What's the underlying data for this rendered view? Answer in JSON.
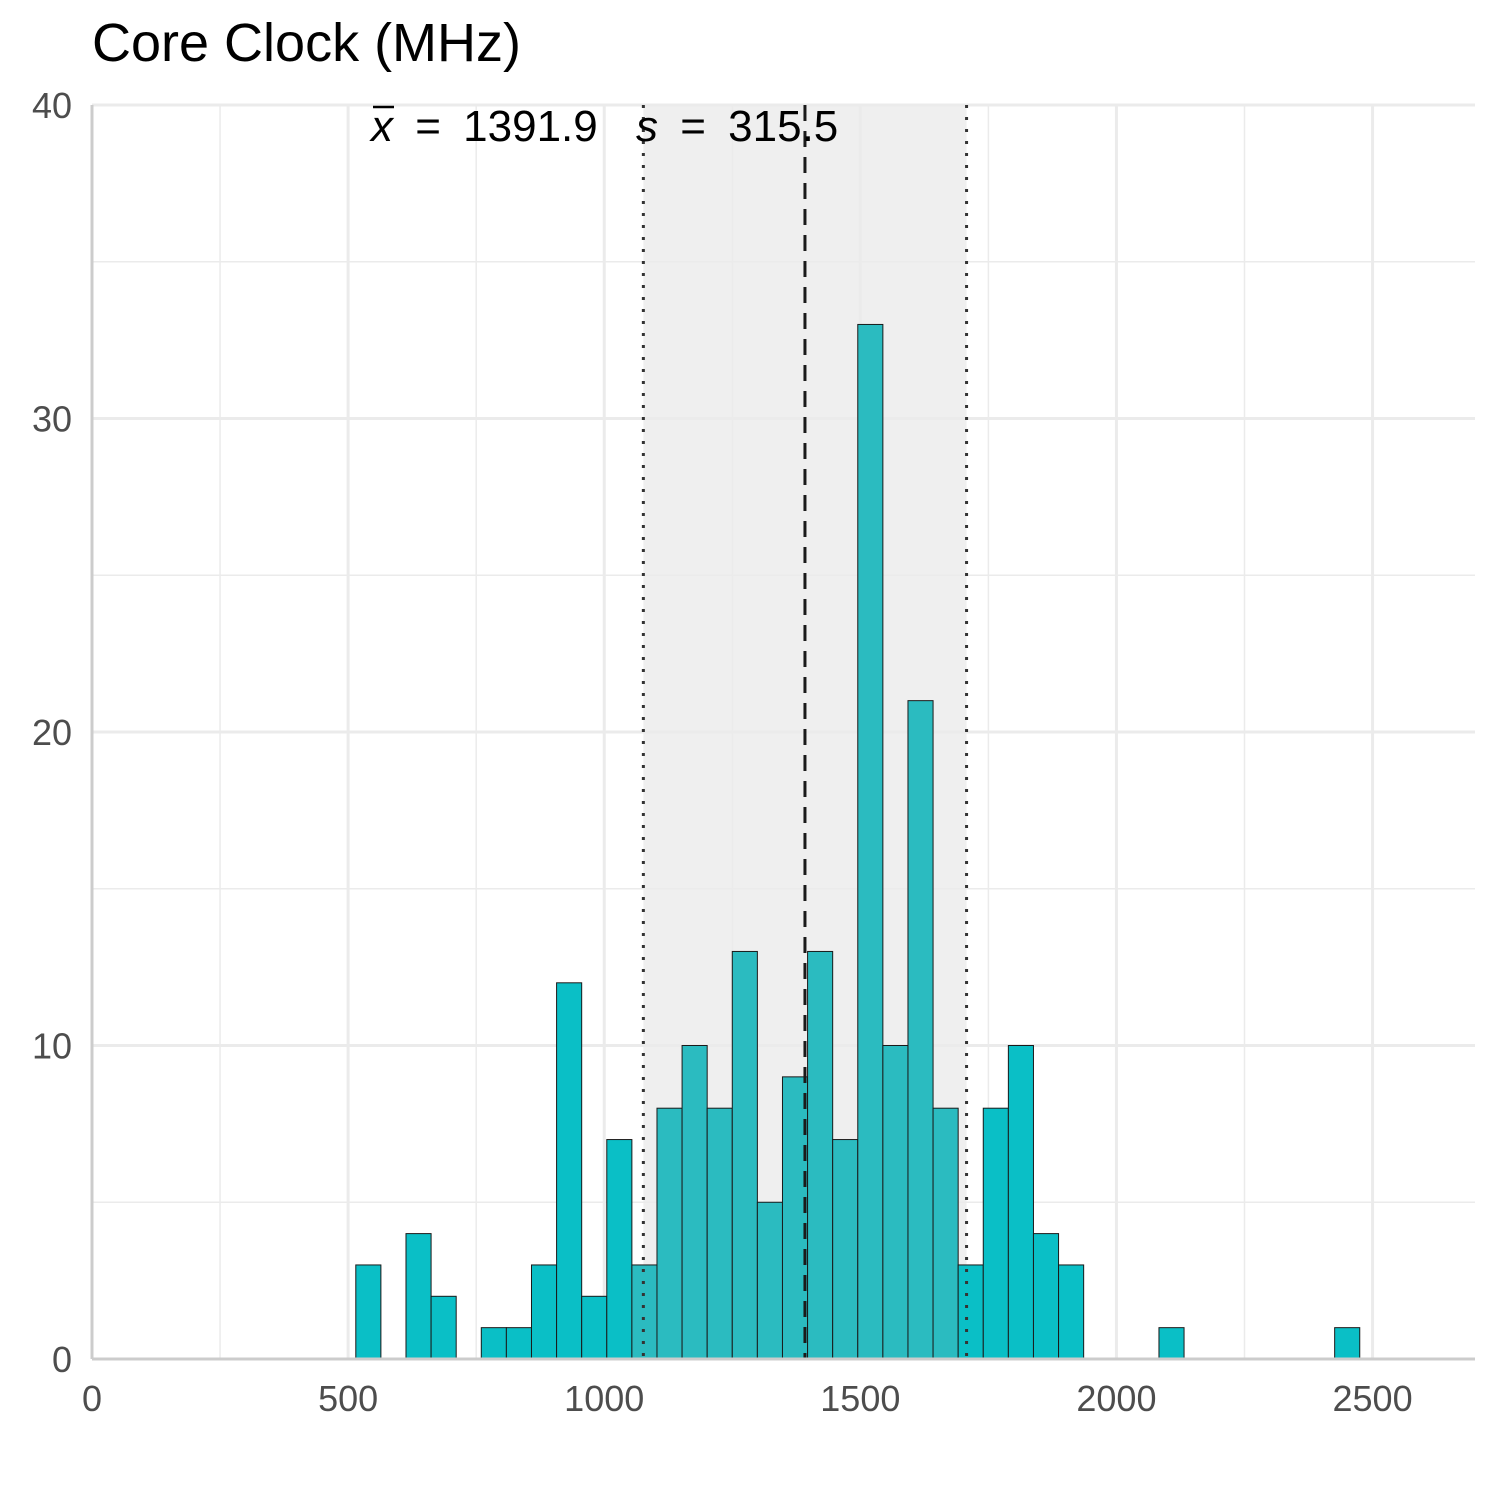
{
  "chart_data": {
    "type": "bar",
    "title": "Core Clock (MHz)",
    "xlabel": "",
    "ylabel": "",
    "xlim": [
      0,
      2700
    ],
    "ylim": [
      0,
      40
    ],
    "x_ticks": [
      0,
      500,
      1000,
      1500,
      2000,
      2500
    ],
    "y_ticks": [
      0,
      10,
      20,
      30,
      40
    ],
    "bin_width": 49,
    "bins": [
      {
        "start": 515,
        "count": 3
      },
      {
        "start": 613,
        "count": 4
      },
      {
        "start": 662,
        "count": 2
      },
      {
        "start": 760,
        "count": 1
      },
      {
        "start": 809,
        "count": 1
      },
      {
        "start": 858,
        "count": 3
      },
      {
        "start": 907,
        "count": 12
      },
      {
        "start": 956,
        "count": 2
      },
      {
        "start": 1005,
        "count": 7
      },
      {
        "start": 1054,
        "count": 3
      },
      {
        "start": 1103,
        "count": 8
      },
      {
        "start": 1152,
        "count": 10
      },
      {
        "start": 1201,
        "count": 8
      },
      {
        "start": 1250,
        "count": 13
      },
      {
        "start": 1299,
        "count": 5
      },
      {
        "start": 1348,
        "count": 9
      },
      {
        "start": 1397,
        "count": 13
      },
      {
        "start": 1446,
        "count": 7
      },
      {
        "start": 1495,
        "count": 33
      },
      {
        "start": 1544,
        "count": 10
      },
      {
        "start": 1593,
        "count": 21
      },
      {
        "start": 1642,
        "count": 8
      },
      {
        "start": 1691,
        "count": 3
      },
      {
        "start": 1740,
        "count": 8
      },
      {
        "start": 1789,
        "count": 10
      },
      {
        "start": 1838,
        "count": 4
      },
      {
        "start": 1887,
        "count": 3
      },
      {
        "start": 2083,
        "count": 1
      },
      {
        "start": 2426,
        "count": 1
      }
    ],
    "mean": 1391.9,
    "sd": 315.5,
    "mean_label": "1391.9",
    "sd_label": "315.5",
    "mean_symbol": "x",
    "sd_symbol": "s",
    "equals_symbol": "=",
    "grid": true,
    "bar_color": "#0abfc6",
    "bar_color_in_band": "#2bbbc0",
    "band_color": "#efefef"
  }
}
